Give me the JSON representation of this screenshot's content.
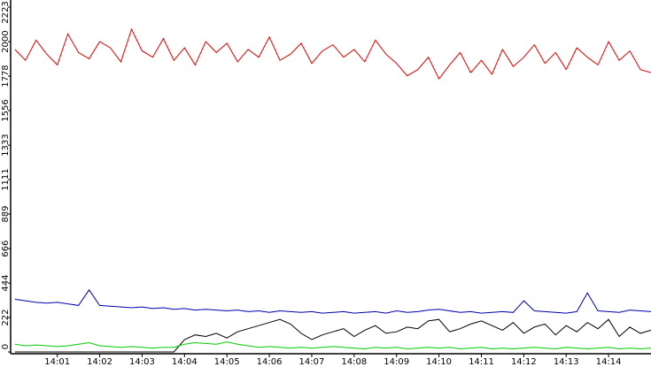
{
  "chart_data": {
    "type": "line",
    "x": [
      0,
      0.25,
      0.5,
      0.75,
      1,
      1.25,
      1.5,
      1.75,
      2,
      2.25,
      2.5,
      2.75,
      3,
      3.25,
      3.5,
      3.75,
      4,
      4.25,
      4.5,
      4.75,
      5,
      5.25,
      5.5,
      5.75,
      6,
      6.25,
      6.5,
      6.75,
      7,
      7.25,
      7.5,
      7.75,
      8,
      8.25,
      8.5,
      8.75,
      9,
      9.25,
      9.5,
      9.75,
      10,
      10.25,
      10.5,
      10.75,
      11,
      11.25,
      11.5,
      11.75,
      12,
      12.25,
      12.5,
      12.75,
      13,
      13.25,
      13.5,
      13.75,
      14,
      14.25,
      14.5,
      14.75,
      15
    ],
    "series": [
      {
        "color": "#e00000",
        "values": [
          1950,
          1880,
          2010,
          1920,
          1850,
          2050,
          1930,
          1890,
          2000,
          1960,
          1870,
          2080,
          1940,
          1900,
          2020,
          1880,
          1960,
          1850,
          2000,
          1930,
          1990,
          1870,
          1950,
          1900,
          2030,
          1880,
          1920,
          1990,
          1860,
          1940,
          1980,
          1900,
          1950,
          1870,
          2010,
          1920,
          1860,
          1780,
          1820,
          1900,
          1760,
          1850,
          1930,
          1800,
          1880,
          1790,
          1950,
          1840,
          1900,
          1980,
          1860,
          1930,
          1820,
          1960,
          1900,
          1850,
          2000,
          1880,
          1940,
          1820,
          1800
        ]
      },
      {
        "color": "#0000b0",
        "values": [
          340,
          330,
          320,
          315,
          320,
          310,
          300,
          400,
          300,
          295,
          290,
          285,
          290,
          280,
          285,
          275,
          280,
          270,
          275,
          270,
          265,
          270,
          260,
          265,
          255,
          265,
          260,
          255,
          260,
          250,
          255,
          260,
          250,
          255,
          260,
          250,
          265,
          255,
          260,
          270,
          275,
          265,
          255,
          260,
          250,
          255,
          260,
          255,
          330,
          265,
          260,
          255,
          250,
          260,
          380,
          265,
          260,
          255,
          270,
          265,
          260
        ]
      },
      {
        "color": "#000000",
        "values": [
          0,
          0,
          0,
          0,
          0,
          0,
          0,
          0,
          0,
          0,
          0,
          0,
          0,
          0,
          0,
          0,
          80,
          110,
          100,
          120,
          90,
          130,
          150,
          170,
          190,
          210,
          180,
          120,
          80,
          110,
          130,
          150,
          100,
          140,
          170,
          120,
          130,
          160,
          150,
          200,
          210,
          130,
          150,
          180,
          200,
          170,
          140,
          190,
          120,
          160,
          180,
          110,
          170,
          130,
          190,
          150,
          210,
          100,
          160,
          120,
          140
        ]
      },
      {
        "color": "#00cc00",
        "values": [
          50,
          40,
          45,
          40,
          35,
          40,
          50,
          60,
          40,
          35,
          30,
          35,
          30,
          25,
          30,
          30,
          50,
          60,
          55,
          50,
          65,
          50,
          40,
          30,
          35,
          30,
          25,
          30,
          25,
          30,
          35,
          30,
          25,
          20,
          30,
          25,
          30,
          20,
          25,
          30,
          25,
          30,
          20,
          25,
          30,
          20,
          25,
          20,
          25,
          30,
          25,
          20,
          30,
          25,
          20,
          25,
          30,
          20,
          25,
          20,
          25
        ]
      }
    ],
    "xlim": [
      -0.1,
      15
    ],
    "xticks": [
      {
        "value": 1,
        "label": "14:01"
      },
      {
        "value": 2,
        "label": "14:02"
      },
      {
        "value": 3,
        "label": "14:03"
      },
      {
        "value": 4,
        "label": "14:04"
      },
      {
        "value": 5,
        "label": "14:05"
      },
      {
        "value": 6,
        "label": "14:06"
      },
      {
        "value": 7,
        "label": "14:07"
      },
      {
        "value": 8,
        "label": "14:08"
      },
      {
        "value": 9,
        "label": "14:09"
      },
      {
        "value": 10,
        "label": "14:10"
      },
      {
        "value": 11,
        "label": "14:11"
      },
      {
        "value": 12,
        "label": "14:12"
      },
      {
        "value": 13,
        "label": "14:13"
      },
      {
        "value": 14,
        "label": "14:14"
      }
    ],
    "ylim": [
      0,
      2223
    ],
    "yticks": [
      0,
      222,
      444,
      666,
      889,
      1111,
      1333,
      1556,
      1778,
      2000,
      2223
    ]
  }
}
